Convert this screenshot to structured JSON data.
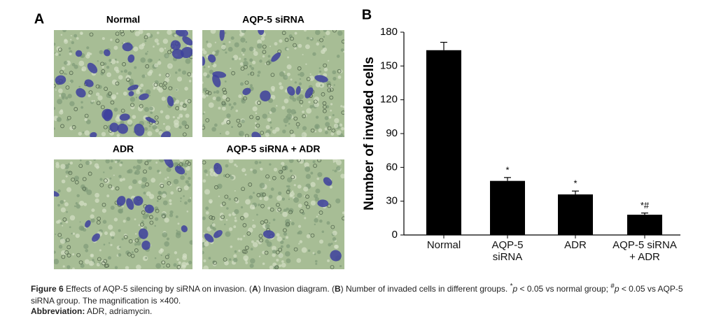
{
  "panel_a": {
    "label": "A",
    "images": [
      "Normal",
      "AQP-5 siRNA",
      "ADR",
      "AQP-5 siRNA + ADR"
    ]
  },
  "chart_data": {
    "type": "bar",
    "panel_label": "B",
    "y_label": "Number of invaded cells",
    "categories": [
      "Normal",
      "AQP-5 siRNA",
      "ADR",
      "AQP-5 siRNA + ADR"
    ],
    "values": [
      164,
      48,
      36,
      18
    ],
    "errors": [
      7,
      3,
      3,
      1.5
    ],
    "significance": [
      null,
      "*",
      "*",
      "*#"
    ],
    "color": "#000000",
    "ylim": [
      0,
      180
    ],
    "yticks": [
      0,
      30,
      60,
      90,
      120,
      150,
      180
    ],
    "grid": false
  },
  "caption": {
    "label": "Figure 6",
    "segments": [
      " Effects of AQP-5 silencing by siRNA on invasion. (",
      "A",
      ") Invasion diagram. (",
      "B",
      ") Number of invaded cells in different groups. ",
      "*",
      "p",
      " < 0.05 vs normal group; ",
      "#",
      "p",
      " < 0.05 vs AQP-5 siRNA group. The magnification is ×400."
    ],
    "abbreviation_label": "Abbreviation:",
    "abbreviation_text": " ADR, adriamycin."
  }
}
